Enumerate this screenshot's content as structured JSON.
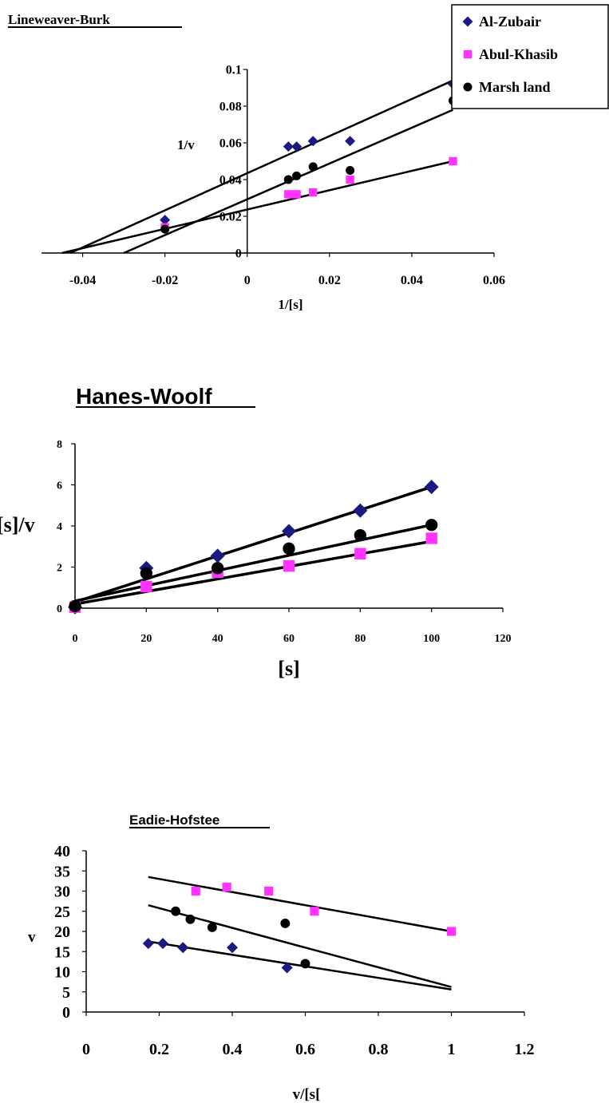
{
  "colors": {
    "al_zubair": "#1a1a80",
    "abul_khasib": "#ff33ff",
    "marsh_land": "#000000",
    "axis": "#000000"
  },
  "chart_data": [
    {
      "type": "scatter",
      "title": "Lineweaver-Burk",
      "xlabel": "1/[s]",
      "ylabel": "1/v",
      "xlim": [
        -0.05,
        0.06
      ],
      "ylim": [
        0,
        0.1
      ],
      "x_ticks": [
        -0.04,
        -0.02,
        0,
        0.02,
        0.04,
        0.06
      ],
      "y_ticks": [
        0,
        0.02,
        0.04,
        0.06,
        0.08,
        0.1
      ],
      "legend": {
        "position": "top-right",
        "entries": [
          "Al-Zubair",
          "Abul-Khasib",
          "Marsh land"
        ]
      },
      "series": [
        {
          "name": "Al-Zubair",
          "marker": "diamond",
          "x": [
            -0.02,
            0.01,
            0.012,
            0.016,
            0.025,
            0.05
          ],
          "y": [
            0.018,
            0.058,
            0.058,
            0.061,
            0.061,
            0.092
          ],
          "trendline": [
            [
              -0.043,
              0
            ],
            [
              0.05,
              0.094
            ]
          ]
        },
        {
          "name": "Abul-Khasib",
          "marker": "square",
          "x": [
            -0.02,
            0.01,
            0.012,
            0.016,
            0.025,
            0.05
          ],
          "y": [
            0.014,
            0.032,
            0.032,
            0.033,
            0.04,
            0.05
          ],
          "trendline": [
            [
              -0.045,
              0
            ],
            [
              0.05,
              0.05
            ]
          ]
        },
        {
          "name": "Marsh land",
          "marker": "circle",
          "x": [
            -0.02,
            0.01,
            0.012,
            0.016,
            0.025,
            0.05
          ],
          "y": [
            0.013,
            0.04,
            0.042,
            0.047,
            0.045,
            0.083
          ],
          "trendline": [
            [
              -0.03,
              0
            ],
            [
              0.05,
              0.078
            ]
          ]
        }
      ]
    },
    {
      "type": "scatter",
      "title": "Hanes-Woolf",
      "xlabel": "[s]",
      "ylabel": "[s]/v",
      "xlim": [
        0,
        120
      ],
      "ylim": [
        0,
        8
      ],
      "x_ticks": [
        0,
        20,
        40,
        60,
        80,
        100,
        120
      ],
      "y_ticks": [
        0,
        2,
        4,
        6,
        8
      ],
      "series": [
        {
          "name": "Al-Zubair",
          "marker": "diamond",
          "x": [
            0,
            20,
            40,
            60,
            80,
            100
          ],
          "y": [
            0.05,
            1.95,
            2.55,
            3.75,
            4.75,
            5.9
          ],
          "trendline": [
            [
              0,
              0.3
            ],
            [
              100,
              5.9
            ]
          ]
        },
        {
          "name": "Abul-Khasib",
          "marker": "square",
          "x": [
            0,
            20,
            40,
            60,
            80,
            100
          ],
          "y": [
            0.05,
            1.05,
            1.75,
            2.05,
            2.65,
            3.4
          ],
          "trendline": [
            [
              0,
              0.2
            ],
            [
              100,
              3.25
            ]
          ]
        },
        {
          "name": "Marsh land",
          "marker": "circle",
          "x": [
            0,
            20,
            40,
            60,
            80,
            100
          ],
          "y": [
            0.1,
            1.7,
            1.95,
            2.9,
            3.55,
            4.05
          ],
          "trendline": [
            [
              0,
              0.35
            ],
            [
              100,
              4.05
            ]
          ]
        }
      ]
    },
    {
      "type": "scatter",
      "title": "Eadie-Hofstee",
      "xlabel": "v/[s[",
      "ylabel": "v",
      "xlim": [
        0,
        1.2
      ],
      "ylim": [
        0,
        40
      ],
      "x_ticks": [
        0,
        0.2,
        0.4,
        0.6,
        0.8,
        1,
        1.2
      ],
      "y_ticks": [
        0,
        5,
        10,
        15,
        20,
        25,
        30,
        35,
        40
      ],
      "series": [
        {
          "name": "Al-Zubair",
          "marker": "diamond",
          "x": [
            0.17,
            0.21,
            0.265,
            0.4,
            0.55
          ],
          "y": [
            17,
            17,
            16,
            16,
            11
          ],
          "trendline": [
            [
              0.17,
              17.5
            ],
            [
              1,
              5.6
            ]
          ]
        },
        {
          "name": "Abul-Khasib",
          "marker": "square",
          "x": [
            0.3,
            0.385,
            0.5,
            0.625,
            1
          ],
          "y": [
            30,
            31,
            30,
            25,
            20
          ],
          "trendline": [
            [
              0.17,
              33.5
            ],
            [
              1,
              20
            ]
          ]
        },
        {
          "name": "Marsh land",
          "marker": "circle",
          "x": [
            0.245,
            0.285,
            0.345,
            0.545,
            0.6
          ],
          "y": [
            25,
            23,
            21,
            22,
            12
          ],
          "trendline": [
            [
              0.17,
              26.5
            ],
            [
              1,
              6.2
            ]
          ]
        }
      ]
    }
  ]
}
